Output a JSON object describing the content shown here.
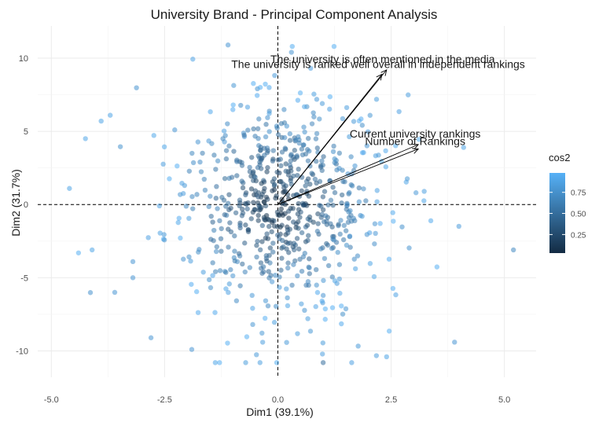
{
  "chart_data": {
    "type": "scatter",
    "title": "University Brand - Principal Component Analysis",
    "xlabel": "Dim1 (39.1%)",
    "ylabel": "Dim2 (31.7%)",
    "xlim": [
      -5.3,
      5.7
    ],
    "ylim": [
      -11.8,
      12.2
    ],
    "x_ticks": [
      -5,
      -2.5,
      0,
      2.5,
      5
    ],
    "x_tick_labels": [
      "-5.0",
      "-2.5",
      "0.0",
      "2.5",
      "5.0"
    ],
    "y_ticks": [
      -10,
      -5,
      0,
      5,
      10
    ],
    "y_tick_labels": [
      "-10",
      "-5",
      "0",
      "5",
      "10"
    ],
    "grid": true,
    "reference_lines": {
      "x": 0,
      "y": 0,
      "style": "dashed"
    },
    "legend": {
      "title": "cos2",
      "placement": "right",
      "ticks": [
        0.25,
        0.5,
        0.75
      ],
      "tick_labels": [
        "0.25",
        "0.50",
        "0.75"
      ],
      "color_low": "#132B43",
      "color_high": "#56B1F7"
    },
    "variables": [
      {
        "label": "The university is often mentioned in the media",
        "x": 2.4,
        "y": 9.2
      },
      {
        "label": "The university is ranked well overall in independent rankings",
        "x": 2.3,
        "y": 8.9
      },
      {
        "label": "Current university rankings",
        "x": 3.1,
        "y": 4.1
      },
      {
        "label": "Number of Rankings",
        "x": 3.1,
        "y": 3.8
      }
    ],
    "individuals": {
      "count": 700,
      "highlighted": [
        {
          "x": -4.6,
          "y": 1.1,
          "cos2": 0.9
        },
        {
          "x": -4.1,
          "y": -3.1,
          "cos2": 0.9
        },
        {
          "x": -3.9,
          "y": 5.7,
          "cos2": 0.9
        },
        {
          "x": -3.7,
          "y": 6.1,
          "cos2": 0.9
        },
        {
          "x": -3.6,
          "y": -6.0,
          "cos2": 0.8
        },
        {
          "x": -3.2,
          "y": -3.9,
          "cos2": 0.8
        },
        {
          "x": -3.2,
          "y": -5.0,
          "cos2": 0.8
        },
        {
          "x": -2.8,
          "y": -9.1,
          "cos2": 0.8
        },
        {
          "x": -1.9,
          "y": -9.9,
          "cos2": 0.8
        },
        {
          "x": -1.1,
          "y": 10.9,
          "cos2": 0.8
        },
        {
          "x": 0.3,
          "y": 10.4,
          "cos2": 0.8
        },
        {
          "x": 1.0,
          "y": -10.8,
          "cos2": 0.5
        },
        {
          "x": 2.4,
          "y": -10.4,
          "cos2": 0.9
        },
        {
          "x": 3.9,
          "y": -9.4,
          "cos2": 0.8
        },
        {
          "x": 4.1,
          "y": 3.9,
          "cos2": 0.9
        },
        {
          "x": 5.2,
          "y": -3.1,
          "cos2": 0.7
        }
      ]
    }
  }
}
